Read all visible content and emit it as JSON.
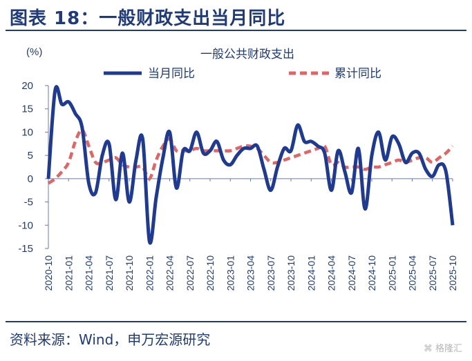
{
  "header": {
    "title": "图表 18：一般财政支出当月同比"
  },
  "footer": {
    "source": "资料来源：Wind，申万宏源研究",
    "watermark": "格隆汇"
  },
  "chart_data": {
    "type": "line",
    "title": "一般公共财政支出",
    "unit_label": "(%)",
    "ylim": [
      -15,
      20
    ],
    "yticks": [
      20,
      15,
      10,
      5,
      0,
      -5,
      -10,
      -15
    ],
    "xtick_labels": [
      "2020-10",
      "2021-01",
      "2021-04",
      "2021-07",
      "2021-10",
      "2022-01",
      "2022-04",
      "2022-07",
      "2022-10",
      "2023-01",
      "2023-04",
      "2023-07",
      "2023-10",
      "2024-01",
      "2024-04",
      "2024-07",
      "2024-10",
      "2025-01",
      "2025-04",
      "2025-07",
      "2025-10"
    ],
    "grid": false,
    "legend_position": "top",
    "colors": {
      "monthly": "#1f3a93",
      "cumulative": "#e06666"
    },
    "x": [
      "2020-10",
      "2020-11",
      "2020-12",
      "2021-01",
      "2021-02",
      "2021-03",
      "2021-04",
      "2021-05",
      "2021-06",
      "2021-07",
      "2021-08",
      "2021-09",
      "2021-10",
      "2021-11",
      "2021-12",
      "2022-01",
      "2022-02",
      "2022-03",
      "2022-04",
      "2022-05",
      "2022-06",
      "2022-07",
      "2022-08",
      "2022-09",
      "2022-10",
      "2022-11",
      "2022-12",
      "2023-01",
      "2023-02",
      "2023-03",
      "2023-04",
      "2023-05",
      "2023-06",
      "2023-07",
      "2023-08",
      "2023-09",
      "2023-10",
      "2023-11",
      "2023-12",
      "2024-01",
      "2024-02",
      "2024-03",
      "2024-04",
      "2024-05",
      "2024-06",
      "2024-07",
      "2024-08",
      "2024-09",
      "2024-10",
      "2024-11",
      "2024-12",
      "2025-01",
      "2025-02",
      "2025-03",
      "2025-04",
      "2025-05",
      "2025-06",
      "2025-07",
      "2025-08",
      "2025-09",
      "2025-10"
    ],
    "series": [
      {
        "name": "当月同比",
        "style": "solid",
        "values": [
          0.0,
          19.0,
          16.0,
          16.5,
          14.0,
          11.0,
          -1.0,
          -3.0,
          5.0,
          7.5,
          -4.5,
          5.5,
          -5.0,
          4.0,
          8.5,
          -13.5,
          -4.0,
          4.5,
          10.0,
          -2.0,
          6.0,
          6.0,
          10.0,
          5.5,
          6.0,
          8.0,
          4.0,
          3.0,
          5.0,
          6.5,
          6.5,
          7.0,
          2.0,
          -2.5,
          2.5,
          6.5,
          6.0,
          11.5,
          8.0,
          8.0,
          7.0,
          5.5,
          -2.5,
          6.0,
          1.5,
          -3.0,
          6.5,
          -6.5,
          5.0,
          10.0,
          4.0,
          9.0,
          7.5,
          3.5,
          5.5,
          5.5,
          2.0,
          0.5,
          3.0,
          1.5,
          -10.0
        ]
      },
      {
        "name": "累计同比",
        "style": "dashed",
        "values": [
          -1.0,
          0.0,
          1.5,
          3.5,
          8.0,
          10.5,
          7.0,
          3.5,
          3.5,
          4.0,
          4.5,
          3.0,
          2.5,
          2.5,
          2.5,
          0.0,
          4.0,
          7.0,
          8.5,
          6.0,
          6.0,
          6.0,
          6.5,
          6.0,
          6.0,
          6.0,
          6.0,
          6.0,
          6.5,
          7.0,
          7.0,
          6.5,
          5.0,
          3.5,
          3.5,
          4.0,
          4.5,
          5.0,
          5.5,
          6.0,
          6.5,
          7.0,
          3.0,
          3.5,
          2.5,
          2.5,
          2.5,
          2.0,
          2.5,
          2.5,
          3.0,
          3.5,
          4.0,
          3.5,
          4.0,
          4.5,
          4.5,
          3.5,
          4.5,
          5.5,
          7.0
        ]
      }
    ]
  }
}
